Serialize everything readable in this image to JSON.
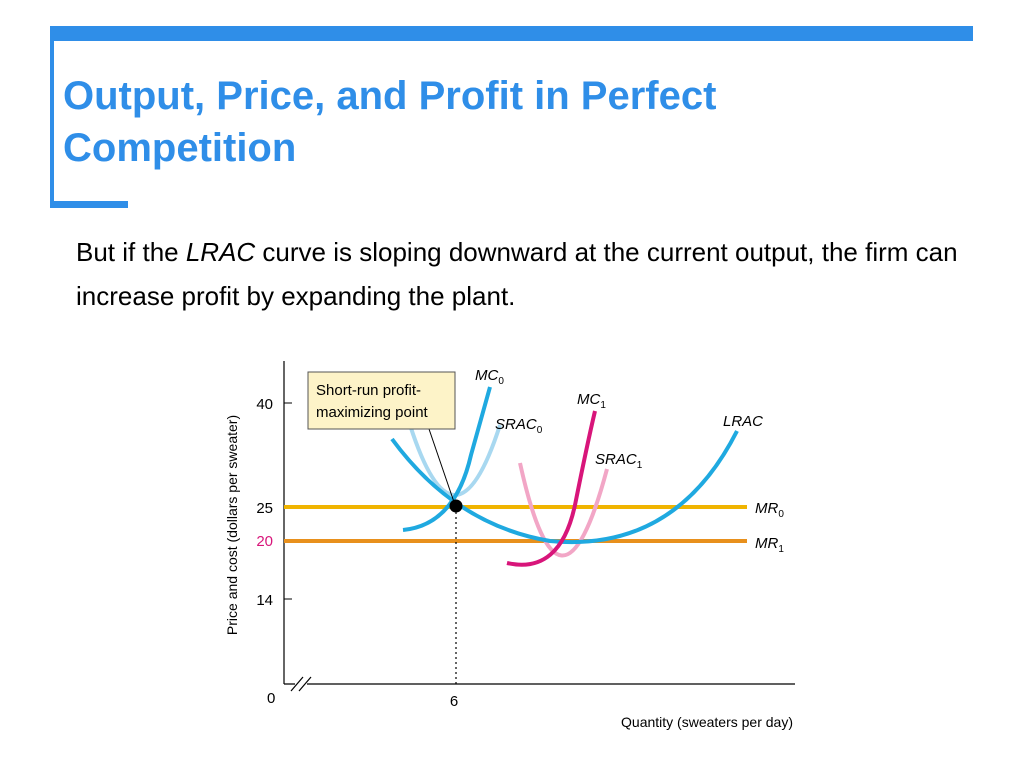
{
  "slide": {
    "title_line1": "Output, Price, and Profit in Perfect",
    "title_line2": "Competition",
    "body_part1": "But if the ",
    "body_italic": "LRAC",
    "body_part2": " curve is sloping downward at the current output, the firm can increase profit by expanding the plant.",
    "accent_color": "#2f8ee8"
  },
  "chart_data": {
    "type": "line",
    "ylabel": "Price and cost (dollars per sweater)",
    "xlabel": "Quantity (sweaters per day)",
    "origin_label": "0",
    "y_ticks": [
      "40",
      "25",
      "20",
      "14"
    ],
    "x_ticks": [
      "6"
    ],
    "annotation": {
      "line1": "Short-run profit-",
      "line2": "maximizing point"
    },
    "curve_labels": {
      "mc0": {
        "base": "MC",
        "sub": "0"
      },
      "mc1": {
        "base": "MC",
        "sub": "1"
      },
      "srac0": {
        "base": "SRAC",
        "sub": "0"
      },
      "srac1": {
        "base": "SRAC",
        "sub": "1"
      },
      "lrac": {
        "base": "LRAC",
        "sub": ""
      },
      "mr0": {
        "base": "MR",
        "sub": "0"
      },
      "mr1": {
        "base": "MR",
        "sub": "1"
      }
    },
    "lines": {
      "mr0_price": 25,
      "mr1_price": 20
    },
    "profit_max_point": {
      "x": 6,
      "y": 25
    },
    "colors": {
      "mc0": "#1fa9e0",
      "srac0": "#a8d8f0",
      "lrac": "#1fa9e0",
      "mc1": "#d8157a",
      "srac1": "#f2a6c6",
      "mr0": "#f0b400",
      "mr1": "#e8901c",
      "price20": "#d8157a",
      "annotation_bg": "#fdf3c8"
    }
  }
}
